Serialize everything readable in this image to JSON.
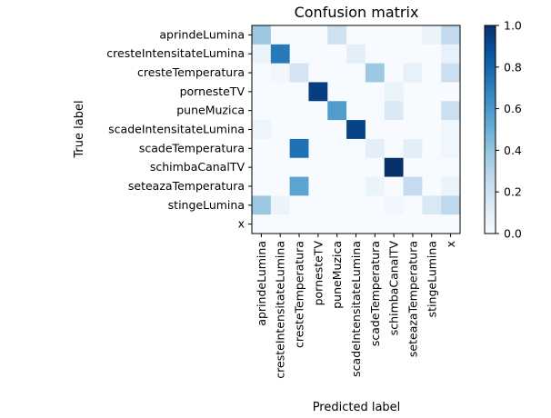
{
  "chart_data": {
    "type": "heatmap",
    "title": "Confusion matrix",
    "xlabel": "Predicted label",
    "ylabel": "True label",
    "row_labels": [
      "aprindeLumina",
      "cresteIntensitateLumina",
      "cresteTemperatura",
      "pornesteTV",
      "puneMuzica",
      "scadeIntensitateLumina",
      "scadeTemperatura",
      "schimbaCanalTV",
      "seteazaTemperatura",
      "stingeLumina",
      "x"
    ],
    "col_labels": [
      "aprindeLumina",
      "cresteIntensitateLumina",
      "cresteTemperatura",
      "pornesteTV",
      "puneMuzica",
      "scadeIntensitateLumina",
      "scadeTemperatura",
      "schimbaCanalTV",
      "seteazaTemperatura",
      "stingeLumina",
      "x"
    ],
    "matrix": [
      [
        0.38,
        0,
        0,
        0,
        0.2,
        0,
        0,
        0,
        0,
        0.06,
        0.26
      ],
      [
        0.06,
        0.72,
        0,
        0,
        0,
        0.1,
        0,
        0,
        0,
        0,
        0.08
      ],
      [
        0,
        0.03,
        0.18,
        0,
        0,
        0,
        0.38,
        0,
        0.08,
        0,
        0.22
      ],
      [
        0,
        0,
        0,
        0.95,
        0,
        0,
        0,
        0.06,
        0,
        0,
        0
      ],
      [
        0,
        0,
        0,
        0,
        0.58,
        0,
        0,
        0.14,
        0,
        0,
        0.22
      ],
      [
        0.05,
        0,
        0,
        0,
        0,
        0.93,
        0,
        0,
        0,
        0,
        0.04
      ],
      [
        0,
        0,
        0.75,
        0,
        0,
        0,
        0.1,
        0,
        0.1,
        0,
        0.04
      ],
      [
        0,
        0,
        0,
        0,
        0,
        0,
        0,
        1.0,
        0,
        0,
        0
      ],
      [
        0,
        0,
        0.55,
        0,
        0,
        0,
        0.06,
        0,
        0.25,
        0,
        0.06
      ],
      [
        0.38,
        0.06,
        0,
        0,
        0,
        0,
        0,
        0.03,
        0,
        0.15,
        0.27
      ],
      [
        0,
        0,
        0,
        0,
        0,
        0,
        0,
        0,
        0,
        0,
        0
      ]
    ],
    "colorbar": {
      "min": 0,
      "max": 1,
      "ticks": [
        "0.0",
        "0.2",
        "0.4",
        "0.6",
        "0.8",
        "1.0"
      ],
      "colormap": "Blues"
    },
    "grid": false
  }
}
